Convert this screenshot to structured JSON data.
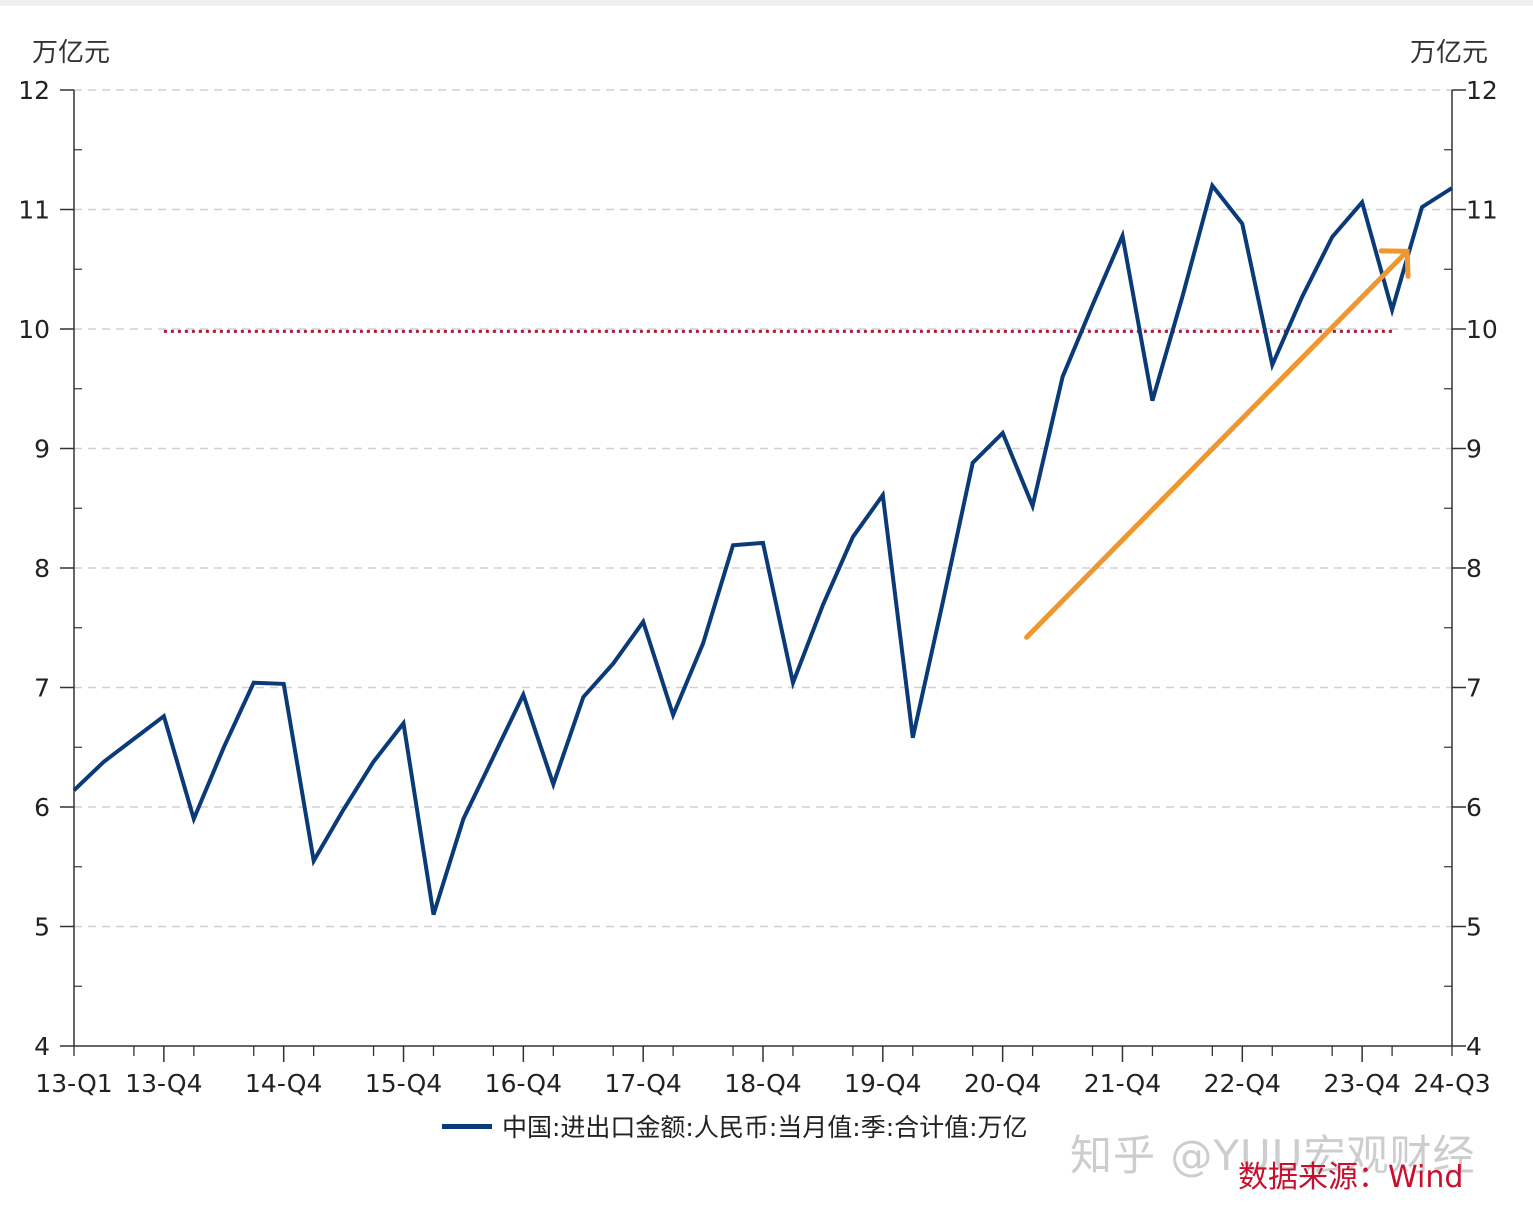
{
  "chart_data": {
    "type": "line",
    "unit_left": "万亿元",
    "unit_right": "万亿元",
    "ylim": [
      4,
      12
    ],
    "yticks": [
      "4",
      "5",
      "6",
      "7",
      "8",
      "9",
      "10",
      "11",
      "12"
    ],
    "xtick_labels": [
      "13-Q1",
      "13-Q4",
      "14-Q4",
      "15-Q4",
      "16-Q4",
      "17-Q4",
      "18-Q4",
      "19-Q4",
      "20-Q4",
      "21-Q4",
      "22-Q4",
      "23-Q4",
      "24-Q3"
    ],
    "xtick_positions": [
      0,
      3,
      7,
      11,
      15,
      19,
      23,
      27,
      31,
      35,
      39,
      43,
      46
    ],
    "grid": true,
    "legend_position": "bottom",
    "series": [
      {
        "name": "中国:进出口金额:人民币:当月值:季:合计值:万亿",
        "color": "#0b3a78",
        "values": [
          6.14,
          6.38,
          6.57,
          6.76,
          5.9,
          6.5,
          7.04,
          7.03,
          5.55,
          5.98,
          6.38,
          6.7,
          5.1,
          5.9,
          6.42,
          6.94,
          6.19,
          6.92,
          7.2,
          7.55,
          6.77,
          7.37,
          8.19,
          8.21,
          7.04,
          7.69,
          8.26,
          8.61,
          6.58,
          7.71,
          8.88,
          9.13,
          8.52,
          9.6,
          10.2,
          10.78,
          9.4,
          10.27,
          11.2,
          10.88,
          9.7,
          10.27,
          10.77,
          11.06,
          10.16,
          11.02,
          11.18
        ]
      }
    ],
    "reference_line": {
      "value": 9.98,
      "from_index": 3,
      "to_index": 44,
      "color": "#a8193a"
    },
    "trend_arrow": {
      "from": [
        31.8,
        7.42
      ],
      "to": [
        44.5,
        10.65
      ],
      "color": "#f0962e"
    },
    "source": "数据来源：Wind"
  },
  "watermark": "知乎 @YUU宏观财经"
}
